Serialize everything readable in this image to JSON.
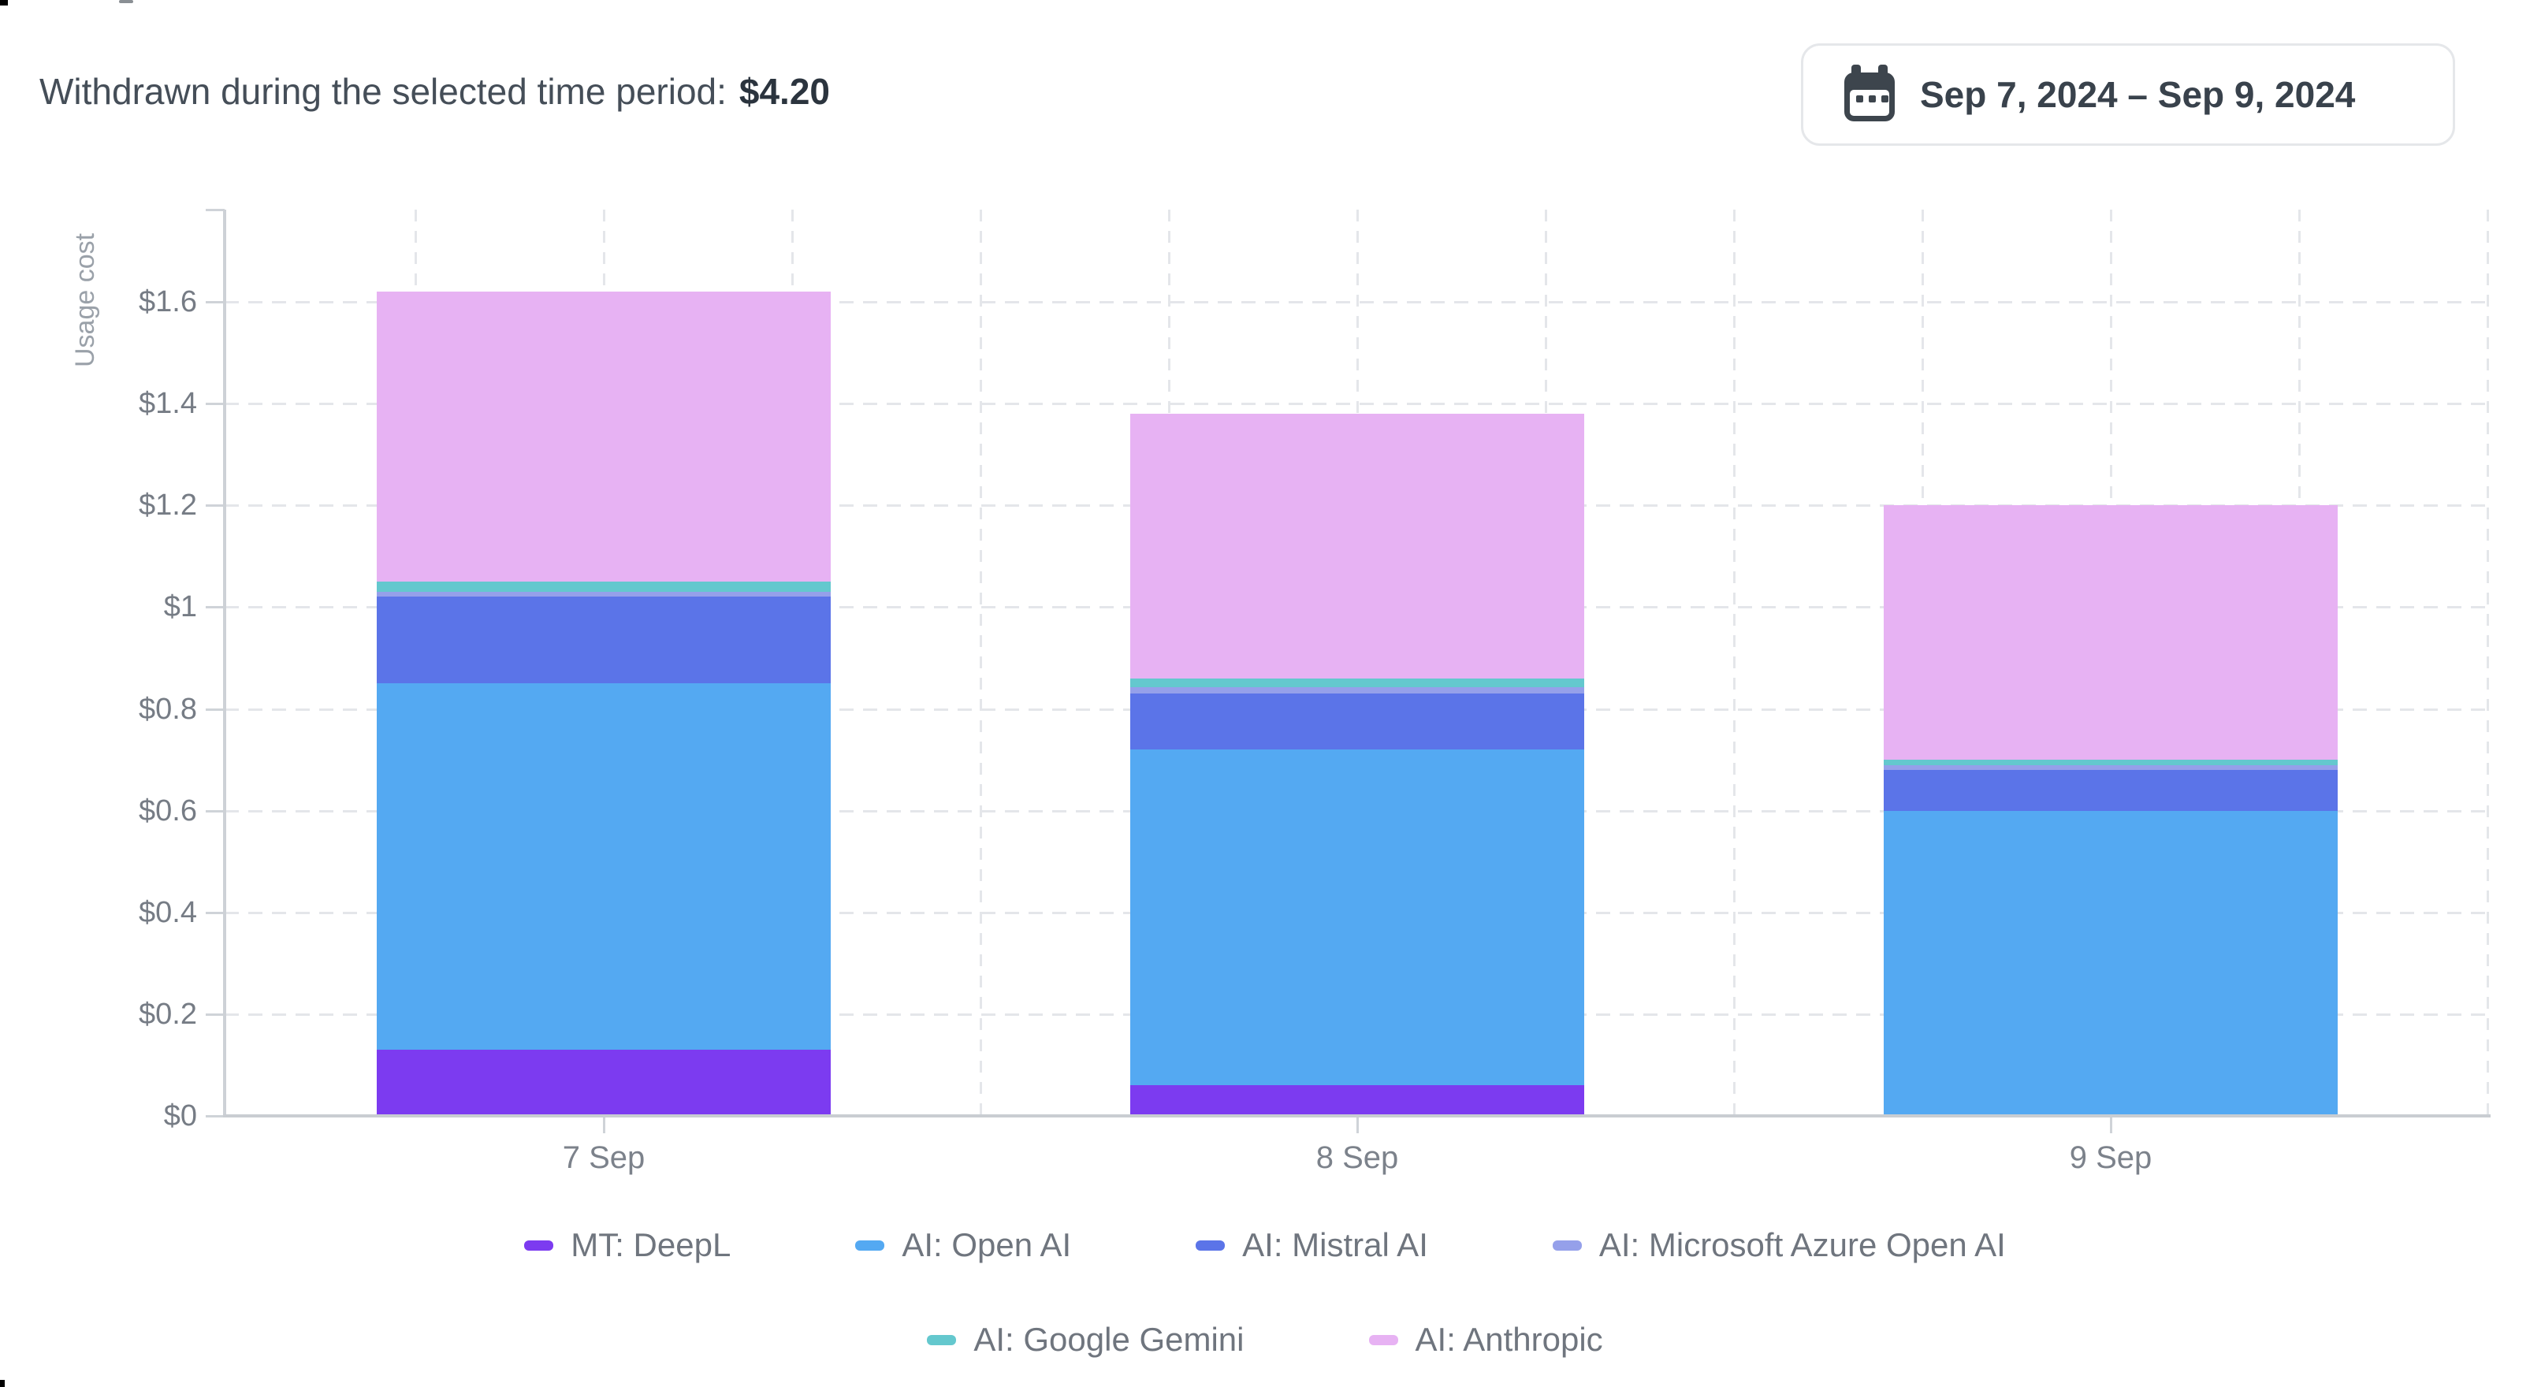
{
  "header": {
    "label": "Withdrawn during the selected time period:",
    "amount": "$4.20"
  },
  "date_range": {
    "label": "Sep 7, 2024 – Sep 9, 2024",
    "icon": "calendar-icon"
  },
  "chart_data": {
    "type": "bar",
    "stacked": true,
    "title": "",
    "xlabel": "",
    "ylabel": "Usage cost",
    "categories": [
      "7 Sep",
      "8 Sep",
      "9 Sep"
    ],
    "series": [
      {
        "name": "MT: DeepL",
        "color": "#7c3bf0",
        "values": [
          0.13,
          0.06,
          0
        ]
      },
      {
        "name": "AI: Open AI",
        "color": "#54a9f2",
        "values": [
          0.72,
          0.66,
          0.6
        ]
      },
      {
        "name": "AI: Mistral AI",
        "color": "#5b74e8",
        "values": [
          0.17,
          0.11,
          0.08
        ]
      },
      {
        "name": "AI: Microsoft Azure Open AI",
        "color": "#95a0ea",
        "values": [
          0.01,
          0.013,
          0.009
        ]
      },
      {
        "name": "AI: Google Gemini",
        "color": "#64c8ce",
        "values": [
          0.02,
          0.017,
          0.011
        ]
      },
      {
        "name": "AI: Anthropic",
        "color": "#e7b2f3",
        "values": [
          0.57,
          0.52,
          0.5
        ]
      }
    ],
    "yticks": [
      {
        "value": 0,
        "label": "$0"
      },
      {
        "value": 0.2,
        "label": "$0.2"
      },
      {
        "value": 0.4,
        "label": "$0.4"
      },
      {
        "value": 0.6,
        "label": "$0.6"
      },
      {
        "value": 0.8,
        "label": "$0.8"
      },
      {
        "value": 1,
        "label": "$1"
      },
      {
        "value": 1.2,
        "label": "$1.2"
      },
      {
        "value": 1.4,
        "label": "$1.4"
      },
      {
        "value": 1.6,
        "label": "$1.6"
      }
    ],
    "ylim": [
      0,
      1.78
    ],
    "grid": true,
    "legend_position": "bottom",
    "legend_rows": [
      [
        0,
        1,
        2,
        3
      ],
      [
        4,
        5
      ]
    ],
    "colors": {
      "grid": "#e4e6ea",
      "axis": "#c9cdd2",
      "tick_text": "#767c85",
      "axis_title_text": "#9aa1a9",
      "legend_text": "#6f757e"
    }
  }
}
